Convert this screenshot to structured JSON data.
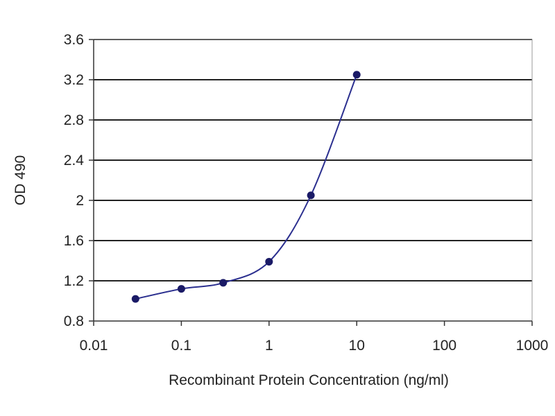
{
  "chart_data": {
    "type": "line",
    "xlabel": "Recombinant Protein Concentration (ng/ml)",
    "ylabel": "OD 490",
    "x_scale": "log",
    "xlim": [
      0.01,
      1000
    ],
    "ylim": [
      0.8,
      3.6
    ],
    "x_ticks": [
      "0.01",
      "0.1",
      "1",
      "10",
      "100",
      "1000"
    ],
    "y_ticks": [
      "0.8",
      "1.2",
      "1.6",
      "2",
      "2.4",
      "2.8",
      "3.2",
      "3.6"
    ],
    "grid": "horizontal",
    "legend": "none",
    "series": [
      {
        "x": [
          0.03,
          0.1,
          0.3,
          1,
          3,
          10
        ],
        "y": [
          1.02,
          1.12,
          1.18,
          1.39,
          2.05,
          3.25
        ]
      }
    ]
  },
  "colors": {
    "series": "#2b2f8f",
    "marker": "#1a1a66",
    "grid": "#222222",
    "axis": "#333333"
  }
}
